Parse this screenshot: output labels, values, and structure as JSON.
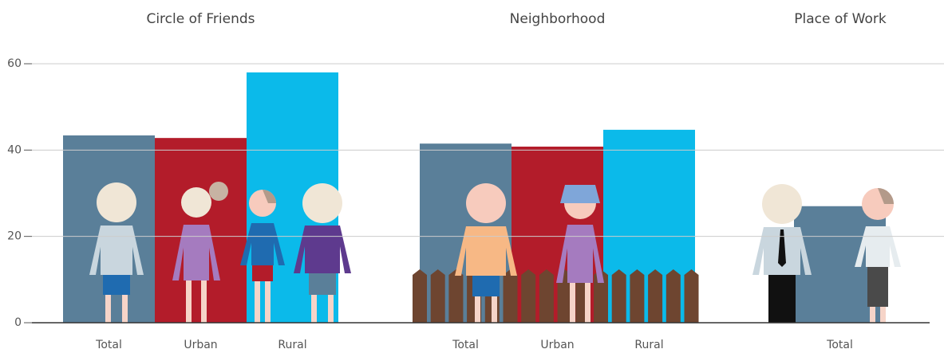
{
  "chart_data": {
    "type": "bar",
    "ylim": [
      0,
      60
    ],
    "yticks": [
      0,
      20,
      40,
      60
    ],
    "grid": true,
    "groups": [
      {
        "title": "Circle of Friends",
        "categories": [
          "Total",
          "Urban",
          "Rural"
        ],
        "values": [
          43.4,
          42.8,
          58.0
        ],
        "colors": [
          "#5a7f99",
          "#b31c2a",
          "#0bbaea"
        ]
      },
      {
        "title": "Neighborhood",
        "categories": [
          "Total",
          "Urban",
          "Rural"
        ],
        "values": [
          41.5,
          40.8,
          44.7
        ],
        "colors": [
          "#5a7f99",
          "#b31c2a",
          "#0bbaea"
        ]
      },
      {
        "title": "Place of Work",
        "categories": [
          "Total"
        ],
        "values": [
          27.0
        ],
        "colors": [
          "#5a7f99"
        ]
      }
    ]
  }
}
